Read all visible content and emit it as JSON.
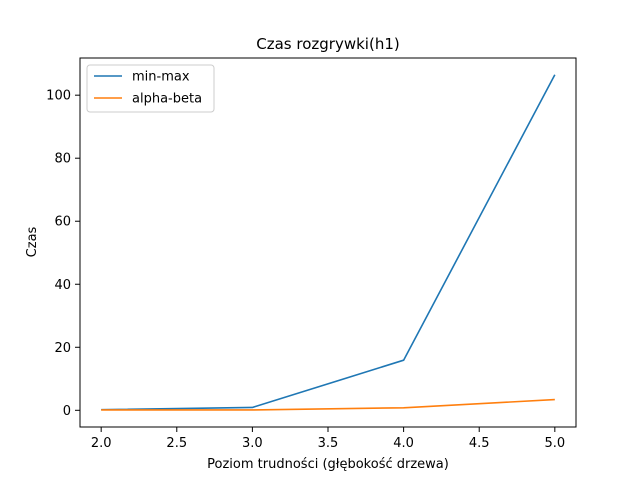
{
  "chart_data": {
    "type": "line",
    "title": "Czas rozgrywki(h1)",
    "xlabel": "Poziom trudności (głębokość drzewa)",
    "ylabel": "Czas",
    "x": [
      2.0,
      3.0,
      4.0,
      5.0
    ],
    "series": [
      {
        "name": "min-max",
        "values": [
          0.2,
          0.9,
          15.9,
          106.5
        ],
        "color": "#1f77b4"
      },
      {
        "name": "alpha-beta",
        "values": [
          0.1,
          0.1,
          0.8,
          3.4
        ],
        "color": "#ff7f0e"
      }
    ],
    "xlim": [
      1.86,
      5.14
    ],
    "ylim": [
      -5.3,
      111.8
    ],
    "xticks": [
      2.0,
      2.5,
      3.0,
      3.5,
      4.0,
      4.5,
      5.0
    ],
    "xtick_labels": [
      "2.0",
      "2.5",
      "3.0",
      "3.5",
      "4.0",
      "4.5",
      "5.0"
    ],
    "yticks": [
      0,
      20,
      40,
      60,
      80,
      100
    ],
    "ytick_labels": [
      "0",
      "20",
      "40",
      "60",
      "80",
      "100"
    ],
    "grid": false,
    "legend_position": "top-left"
  }
}
